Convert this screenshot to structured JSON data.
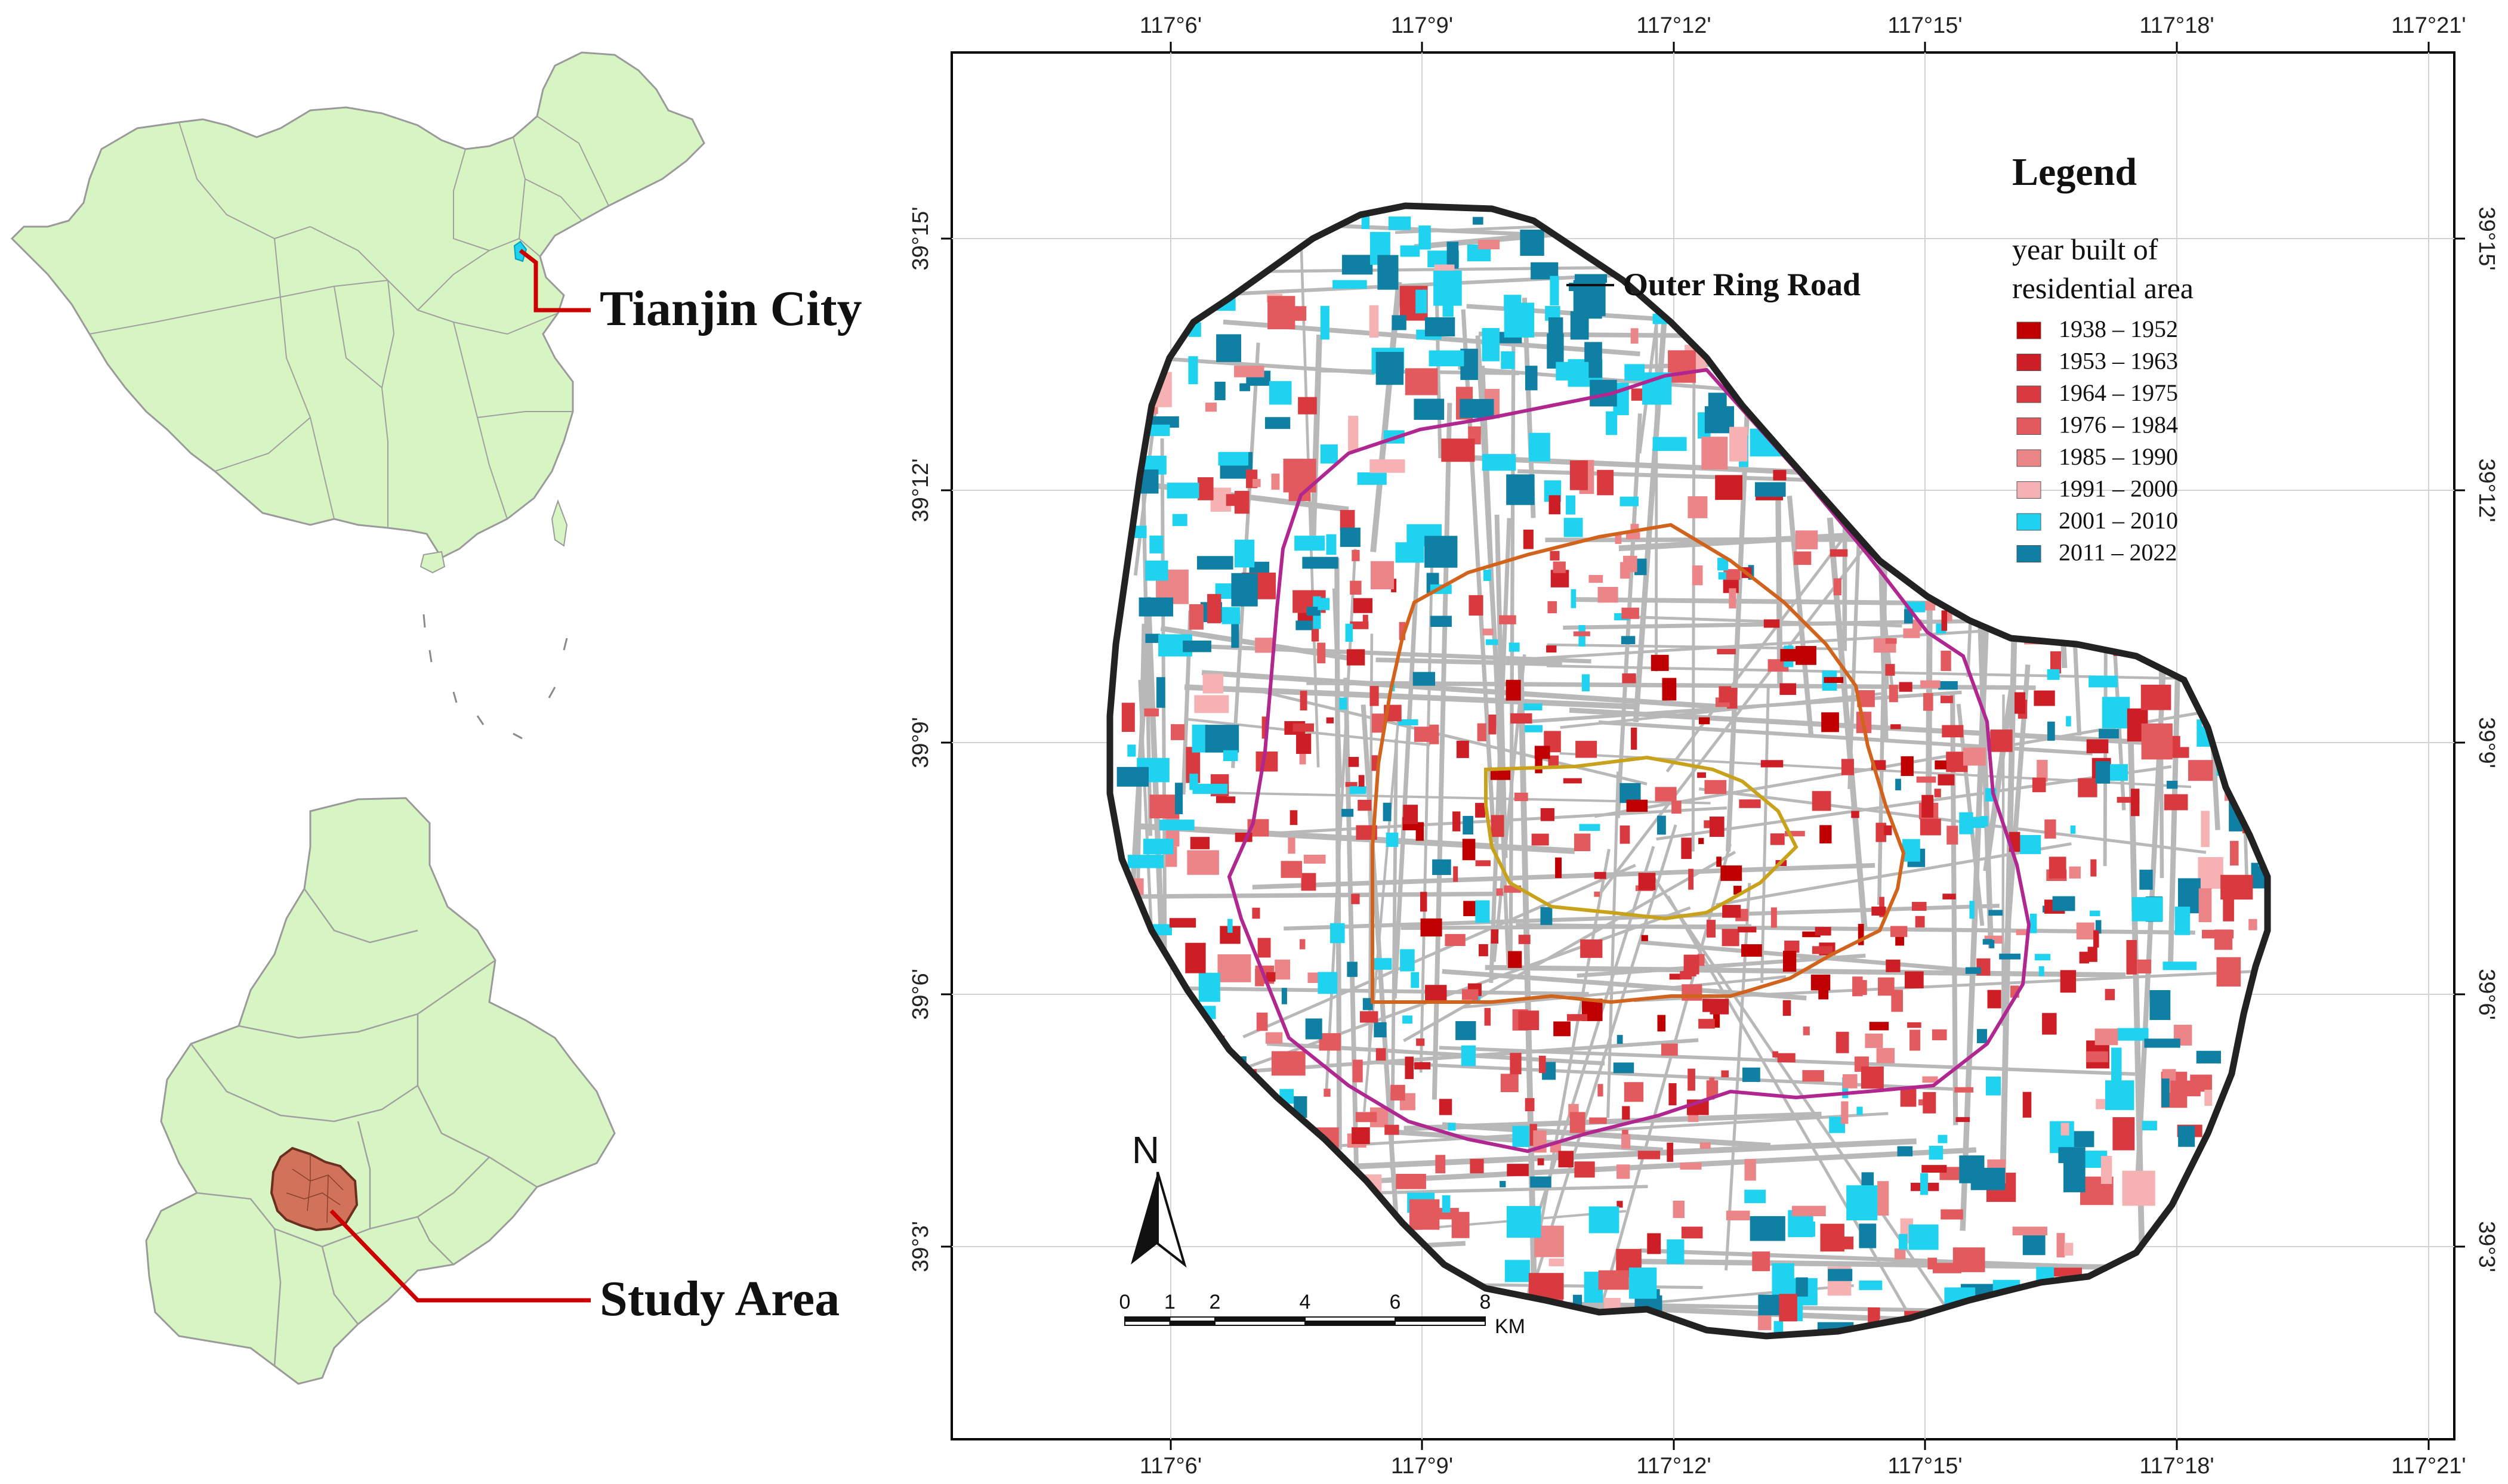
{
  "inset_china": {
    "callout": "Tianjin City"
  },
  "inset_tianjin": {
    "callout": "Study Area"
  },
  "map": {
    "top_ticks": [
      "117°6'",
      "117°9'",
      "117°12'",
      "117°15'",
      "117°18'",
      "117°21'"
    ],
    "bottom_ticks": [
      "117°6'",
      "117°9'",
      "117°12'",
      "117°15'",
      "117°18'",
      "117°21'"
    ],
    "left_ticks": [
      "39°15'",
      "39°12'",
      "39°9'",
      "39°6'",
      "39°3'"
    ],
    "right_ticks": [
      "39°15'",
      "39°12'",
      "39°9'",
      "39°6'",
      "39°3'"
    ],
    "road_label": "Outer Ring Road",
    "north_label": "N",
    "scale": {
      "numbers": [
        "0",
        "1",
        "2",
        "4",
        "6",
        "8"
      ],
      "unit": "KM"
    }
  },
  "legend": {
    "title": "Legend",
    "subtitle_line1": "year built of",
    "subtitle_line2": "residential area",
    "items": [
      {
        "label": "1938 – 1952",
        "color": "#c00000"
      },
      {
        "label": "1953 – 1963",
        "color": "#cc1e24"
      },
      {
        "label": "1964 – 1975",
        "color": "#d93a3f"
      },
      {
        "label": "1976 – 1984",
        "color": "#e35a5e"
      },
      {
        "label": "1985 – 1990",
        "color": "#ec8588"
      },
      {
        "label": "1991 – 2000",
        "color": "#f6b2b2"
      },
      {
        "label": "2001 – 2010",
        "color": "#1fd3f0"
      },
      {
        "label": "2011 – 2022",
        "color": "#0f7fa3"
      }
    ]
  },
  "colors": {
    "land": "#d7f5c2",
    "study_area": "#d1735a",
    "callout_line": "#cc0000",
    "outer_ring": "#222222",
    "middle_ring": "#b0278f",
    "inner_ring": "#d2631c",
    "core_ring": "#c9a21b",
    "streets": "#b8b8b8"
  }
}
